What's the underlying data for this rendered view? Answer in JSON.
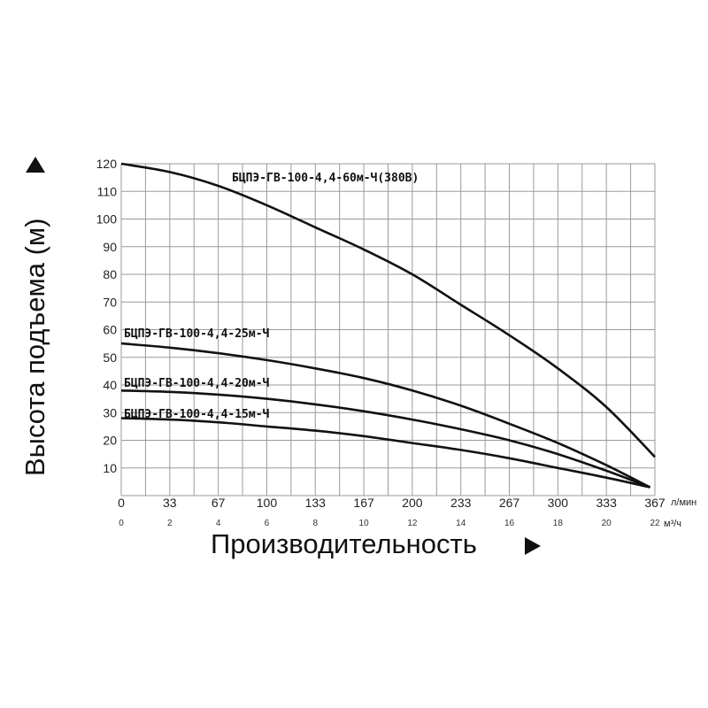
{
  "chart_data": {
    "type": "line",
    "ylabel": "Высота подъема (м)",
    "xlabel": "Производительность",
    "y_ticks": [
      10,
      20,
      30,
      40,
      50,
      60,
      70,
      80,
      90,
      100,
      110,
      120
    ],
    "ylim": [
      0,
      120
    ],
    "x_primary": {
      "unit": "л/мин",
      "ticks": [
        "0",
        "33",
        "67",
        "100",
        "133",
        "167",
        "200",
        "233",
        "267",
        "300",
        "333",
        "367"
      ]
    },
    "x_secondary": {
      "unit": "м³/ч",
      "ticks": [
        "0",
        "2",
        "4",
        "6",
        "8",
        "10",
        "12",
        "14",
        "16",
        "18",
        "20",
        "22"
      ]
    },
    "xlim": [
      0,
      22
    ],
    "grid": true,
    "series": [
      {
        "name": "БЦПЭ-ГВ-100-4,4-60м-Ч(380В)",
        "x": [
          0,
          2,
          4,
          6,
          8,
          10,
          12,
          14,
          16,
          18,
          20,
          22
        ],
        "y": [
          120,
          117,
          112,
          105,
          97,
          89,
          80,
          69,
          58,
          46,
          32,
          14
        ]
      },
      {
        "name": "БЦПЭ-ГВ-100-4,4-25м-Ч",
        "x": [
          0,
          2,
          4,
          6,
          8,
          10,
          12,
          14,
          16,
          18,
          20,
          21.8
        ],
        "y": [
          55,
          53.5,
          51.5,
          49,
          46,
          42.5,
          38,
          32.5,
          26,
          19,
          11,
          3
        ]
      },
      {
        "name": "БЦПЭ-ГВ-100-4,4-20м-Ч",
        "x": [
          0,
          2,
          4,
          6,
          8,
          10,
          12,
          14,
          16,
          18,
          20,
          21.8
        ],
        "y": [
          38,
          37.5,
          36.5,
          35,
          33,
          30.5,
          27.5,
          24,
          20,
          15,
          9,
          3
        ]
      },
      {
        "name": "БЦПЭ-ГВ-100-4,4-15м-Ч",
        "x": [
          0,
          2,
          4,
          6,
          8,
          10,
          12,
          14,
          16,
          18,
          20,
          21.8
        ],
        "y": [
          28,
          27.5,
          26.5,
          25,
          23.5,
          21.5,
          19,
          16.5,
          13.5,
          10,
          6.5,
          3
        ]
      }
    ]
  }
}
